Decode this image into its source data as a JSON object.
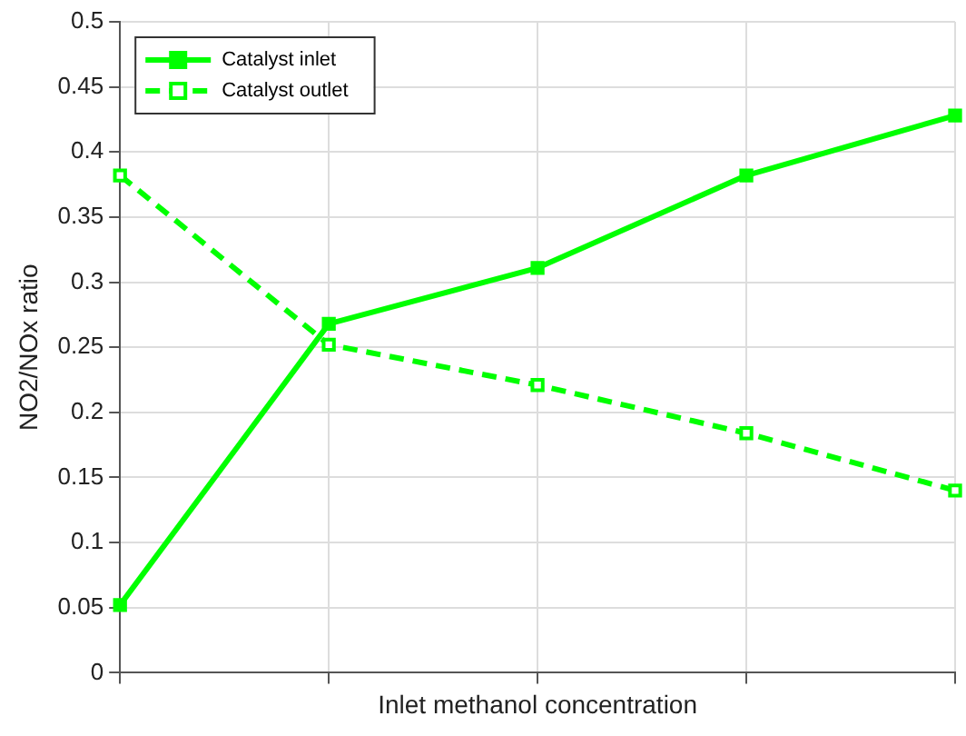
{
  "chart_data": {
    "type": "line",
    "xlabel": "Inlet methanol concentration",
    "ylabel": "NO2/NOx ratio",
    "categories": [
      null,
      null,
      null,
      null,
      null
    ],
    "series": [
      {
        "name": "Catalyst inlet",
        "color": "#00ff00",
        "values": [
          0.052,
          0.268,
          0.311,
          0.382,
          0.428
        ],
        "line_style": "solid"
      },
      {
        "name": "Catalyst outlet",
        "color": "#00ff00",
        "values": [
          0.382,
          0.252,
          0.221,
          0.184,
          0.14
        ],
        "line_style": "dashed"
      }
    ],
    "ylim": [
      0,
      0.5
    ],
    "yticks": [
      0,
      0.05,
      0.1,
      0.15,
      0.2,
      0.25,
      0.3,
      0.35,
      0.4,
      0.45,
      0.5
    ],
    "grid": true,
    "legend": "top left",
    "marker": "square",
    "tick_labels": "y"
  }
}
